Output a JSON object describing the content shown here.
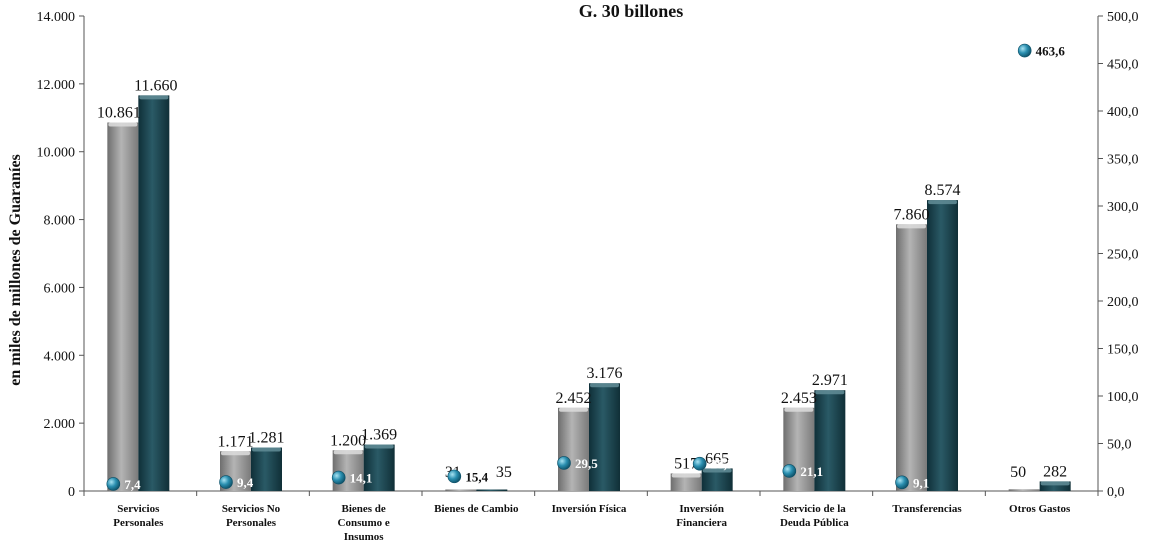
{
  "chart_data": {
    "type": "bar",
    "title": "G. 30 billones",
    "ylabel": "en miles de millones de Guaraníes",
    "ylim": [
      0,
      14000
    ],
    "y_ticks": [
      "0",
      "2.000",
      "4.000",
      "6.000",
      "8.000",
      "10.000",
      "12.000",
      "14.000"
    ],
    "y2lim": [
      0,
      500
    ],
    "y2_ticks": [
      "0,0",
      "50,0",
      "100,0",
      "150,0",
      "200,0",
      "250,0",
      "300,0",
      "350,0",
      "400,0",
      "450,0",
      "500,0"
    ],
    "categories": [
      [
        "Servicios",
        "Personales"
      ],
      [
        "Servicios No",
        "Personales"
      ],
      [
        "Bienes de",
        "Consumo e",
        "Insumos"
      ],
      [
        "Bienes de Cambio"
      ],
      [
        "Inversión Física"
      ],
      [
        "Inversión",
        "Financiera"
      ],
      [
        "Servicio de la",
        "Deuda Pública"
      ],
      [
        "Transferencias"
      ],
      [
        "Otros Gastos"
      ]
    ],
    "series": [
      {
        "values": [
          10861,
          1171,
          1200,
          31,
          2452,
          517,
          2453,
          7860,
          50
        ],
        "labels": [
          "10.861",
          "1.171",
          "1.200",
          "31",
          "2.452",
          "517",
          "2.453",
          "7.860",
          "50"
        ],
        "color": "#8c8c8c"
      },
      {
        "values": [
          11660,
          1281,
          1369,
          35,
          3176,
          665,
          2971,
          8574,
          282
        ],
        "labels": [
          "11.660",
          "1.281",
          "1.369",
          "35",
          "3.176",
          "665",
          "2.971",
          "8.574",
          "282"
        ],
        "color": "#163f4a"
      },
      {
        "type": "scatter",
        "axis": "right",
        "values": [
          7.4,
          9.4,
          14.1,
          15.4,
          29.5,
          28.7,
          21.1,
          9.1,
          463.6
        ],
        "labels": [
          "7,4",
          "9,4",
          "14,1",
          "15,4",
          "29,5",
          "28,7",
          "21,1",
          "9,1",
          "463,6"
        ],
        "color": "#2a8fb0"
      }
    ]
  }
}
